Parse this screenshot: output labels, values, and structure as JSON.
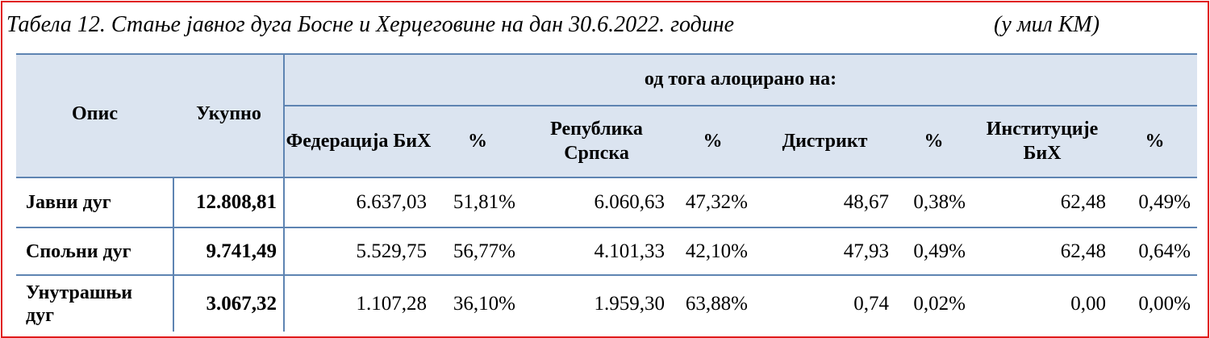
{
  "caption": {
    "title": "Табела 12. Стање јавног дуга Босне и Херцеговине на дан 30.6.2022. године",
    "unit": "(у мил КМ)"
  },
  "table": {
    "headers": {
      "description": "Опис",
      "total": "Укупно",
      "allocated_group": "од тога алоцирано на:",
      "federation": "Федерација БиХ",
      "federation_pct": "%",
      "republika": "Република Српска",
      "republika_pct": "%",
      "district": "Дистрикт",
      "district_pct": "%",
      "institutions": "Институције БиХ",
      "institutions_pct": "%"
    },
    "rows": [
      {
        "label": "Јавни дуг",
        "total": "12.808,81",
        "fed": "6.637,03",
        "fed_pct": "51,81%",
        "rs": "6.060,63",
        "rs_pct": "47,32%",
        "dist": "48,67",
        "dist_pct": "0,38%",
        "inst": "62,48",
        "inst_pct": "0,49%"
      },
      {
        "label": "Спољни дуг",
        "total": "9.741,49",
        "fed": "5.529,75",
        "fed_pct": "56,77%",
        "rs": "4.101,33",
        "rs_pct": "42,10%",
        "dist": "47,93",
        "dist_pct": "0,49%",
        "inst": "62,48",
        "inst_pct": "0,64%"
      },
      {
        "label": "Унутрашњи дуг",
        "total": "3.067,32",
        "fed": "1.107,28",
        "fed_pct": "36,10%",
        "rs": "1.959,30",
        "rs_pct": "63,88%",
        "dist": "0,74",
        "dist_pct": "0,02%",
        "inst": "0,00",
        "inst_pct": "0,00%"
      }
    ]
  }
}
